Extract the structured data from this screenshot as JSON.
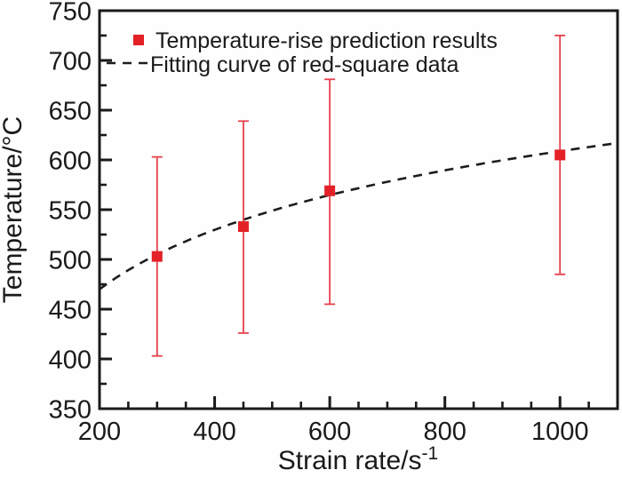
{
  "figure": {
    "background": "#fefefe",
    "frame_color": "#1a1a1a",
    "text_color": "#1a1a1a"
  },
  "legend": {
    "items": [
      {
        "marker": "red-square-marker",
        "label": "Temperature-rise prediction results"
      },
      {
        "marker": "dashed-line-sample",
        "label": "Fitting curve of red-square data"
      }
    ]
  },
  "axes": {
    "x_title": "Strain rate/s⁻¹",
    "x_title_base": "Strain rate/s",
    "x_title_sup": "-1",
    "y_title": "Temperature/°C"
  },
  "chart_data": {
    "type": "scatter",
    "title": "",
    "xlabel": "Strain rate/s⁻¹",
    "ylabel": "Temperature/°C",
    "xlim": [
      200,
      1100
    ],
    "ylim": [
      350,
      750
    ],
    "grid": false,
    "legend_position": "upper-left-inside",
    "x_major_ticks": [
      200,
      400,
      600,
      800,
      1000
    ],
    "x_minor_step": 50,
    "y_major_ticks": [
      350,
      400,
      450,
      500,
      550,
      600,
      650,
      700,
      750
    ],
    "y_minor_step": 25,
    "series": [
      {
        "name": "Temperature-rise prediction results",
        "type": "scatter",
        "marker": "square",
        "marker_color": "#e32127",
        "error_bar_color": "#e7404b",
        "points": [
          {
            "x": 300,
            "y": 503,
            "y_low": 403,
            "y_high": 603
          },
          {
            "x": 450,
            "y": 533,
            "y_low": 426,
            "y_high": 639
          },
          {
            "x": 600,
            "y": 569,
            "y_low": 455,
            "y_high": 681
          },
          {
            "x": 1000,
            "y": 605,
            "y_low": 485,
            "y_high": 725
          }
        ]
      },
      {
        "name": "Fitting curve of red-square data",
        "type": "line",
        "style": "dashed",
        "color": "#1d1d1d",
        "fit_model": "y = a + b*ln(x)",
        "fit_params": {
          "a": 13.3,
          "b": 86.2
        },
        "endpoints": [
          {
            "x": 200,
            "y": 470
          },
          {
            "x": 1100,
            "y": 617
          }
        ]
      }
    ]
  }
}
